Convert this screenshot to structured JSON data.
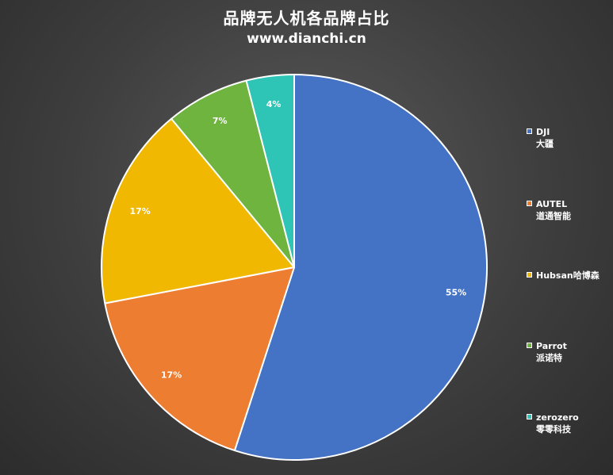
{
  "chart_data": {
    "type": "pie",
    "title": "品牌无人机各品牌占比",
    "subtitle": "www.dianchi.cn",
    "legend_position": "right",
    "slices": [
      {
        "name": "DJI",
        "name_sub": "大疆",
        "value": 55,
        "label": "55%",
        "color": "#4472C4"
      },
      {
        "name": "AUTEL",
        "name_sub": "道通智能",
        "value": 17,
        "label": "17%",
        "color": "#ED7D31"
      },
      {
        "name": "Hubsan哈博森",
        "name_sub": "",
        "value": 17,
        "label": "17%",
        "color": "#F0B800"
      },
      {
        "name": "Parrot",
        "name_sub": "派诺特",
        "value": 7,
        "label": "7%",
        "color": "#6FB43F"
      },
      {
        "name": "zerozero",
        "name_sub": "零零科技",
        "value": 4,
        "label": "4%",
        "color": "#2EC4B6"
      }
    ]
  }
}
